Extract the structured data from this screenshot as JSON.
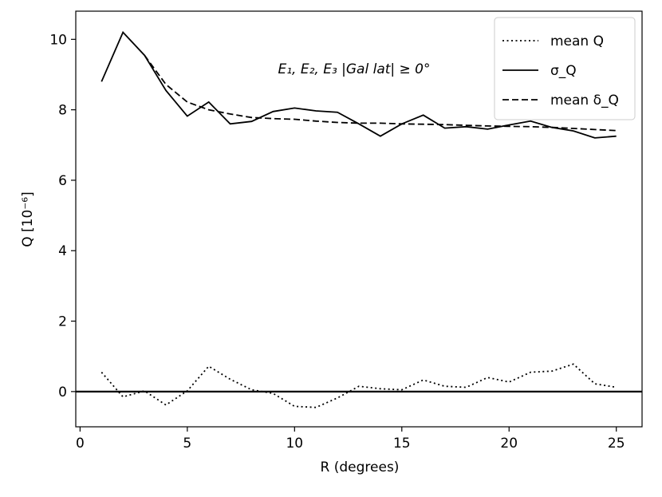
{
  "chart_data": {
    "type": "line",
    "title": "",
    "xlabel": "R (degrees)",
    "ylabel": "Q [10⁻⁶]",
    "xlim": [
      -0.2,
      26.2
    ],
    "ylim": [
      -1.0,
      10.8
    ],
    "xticks": [
      0,
      5,
      10,
      15,
      20,
      25
    ],
    "yticks": [
      0,
      2,
      4,
      6,
      8,
      10
    ],
    "grid": false,
    "legend_position": "top-right",
    "annotation": "E₁, E₂, E₃ |Gal lat| ≥ 0°",
    "zero_line": 0,
    "x": [
      1,
      2,
      3,
      4,
      5,
      6,
      7,
      8,
      9,
      10,
      11,
      12,
      13,
      14,
      15,
      16,
      17,
      18,
      19,
      20,
      21,
      22,
      23,
      24,
      25
    ],
    "series": [
      {
        "name": "mean Q",
        "style": "dotted",
        "values": [
          0.55,
          -0.15,
          0.02,
          -0.38,
          0.02,
          0.72,
          0.35,
          0.05,
          -0.05,
          -0.42,
          -0.45,
          -0.18,
          0.15,
          0.08,
          0.05,
          0.33,
          0.15,
          0.12,
          0.4,
          0.27,
          0.55,
          0.58,
          0.78,
          0.22,
          0.12
        ]
      },
      {
        "name": "σ_Q",
        "style": "solid",
        "values": [
          8.8,
          10.2,
          9.55,
          8.55,
          7.82,
          8.22,
          7.6,
          7.67,
          7.95,
          8.05,
          7.97,
          7.93,
          7.6,
          7.25,
          7.6,
          7.85,
          7.48,
          7.52,
          7.45,
          7.57,
          7.68,
          7.5,
          7.4,
          7.2,
          7.25
        ]
      },
      {
        "name": "mean δ_Q",
        "style": "dashed",
        "values": [
          null,
          null,
          9.55,
          8.72,
          8.22,
          8.0,
          7.88,
          7.78,
          7.75,
          7.73,
          7.68,
          7.64,
          7.62,
          7.62,
          7.6,
          7.59,
          7.58,
          7.56,
          7.54,
          7.53,
          7.52,
          7.5,
          7.47,
          7.44,
          7.41
        ]
      }
    ]
  }
}
